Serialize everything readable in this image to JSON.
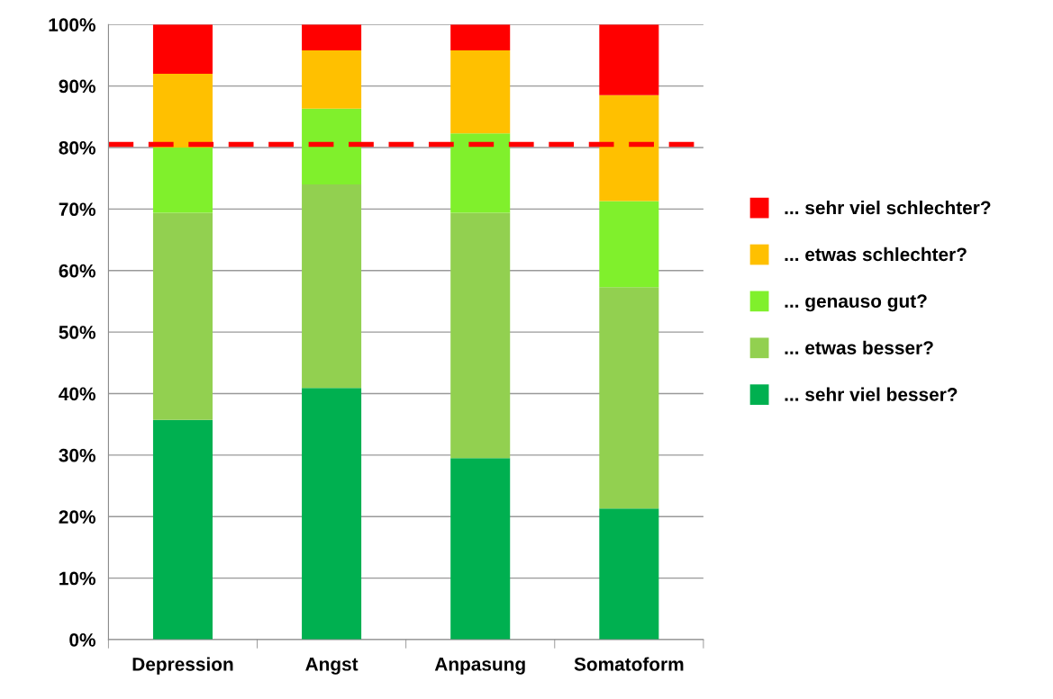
{
  "chart_data": {
    "type": "bar",
    "stacked": true,
    "categories": [
      "Depression",
      "Angst",
      "Anpasung",
      "Somatoform"
    ],
    "series": [
      {
        "name": "... sehr viel besser?",
        "color": "#00b050",
        "values": [
          35.7,
          40.9,
          29.5,
          21.3
        ]
      },
      {
        "name": "... etwas besser?",
        "color": "#92d050",
        "values": [
          33.7,
          33.1,
          39.9,
          36.0
        ]
      },
      {
        "name": "... genauso gut?",
        "color": "#80f02c",
        "values": [
          10.6,
          12.3,
          12.9,
          14.0
        ]
      },
      {
        "name": "... etwas schlechter?",
        "color": "#ffc000",
        "values": [
          12.0,
          9.5,
          13.5,
          17.2
        ]
      },
      {
        "name": "... sehr viel schlechter?",
        "color": "#ff0000",
        "values": [
          8.0,
          4.2,
          4.2,
          11.5
        ]
      }
    ],
    "ylim": [
      0,
      100
    ],
    "yticks": [
      {
        "value": 0,
        "label": "0%"
      },
      {
        "value": 10,
        "label": "10%"
      },
      {
        "value": 20,
        "label": "20%"
      },
      {
        "value": 30,
        "label": "30%"
      },
      {
        "value": 40,
        "label": "40%"
      },
      {
        "value": 50,
        "label": "50%"
      },
      {
        "value": 60,
        "label": "60%"
      },
      {
        "value": 70,
        "label": "70%"
      },
      {
        "value": 80,
        "label": "80%"
      },
      {
        "value": 90,
        "label": "90%"
      },
      {
        "value": 100,
        "label": "100%"
      }
    ],
    "grid": "y",
    "legend": "right",
    "ref_lines": [
      {
        "axis": "y",
        "value": 80.5,
        "color": "#ff0000",
        "line_style": "dashed"
      }
    ]
  }
}
